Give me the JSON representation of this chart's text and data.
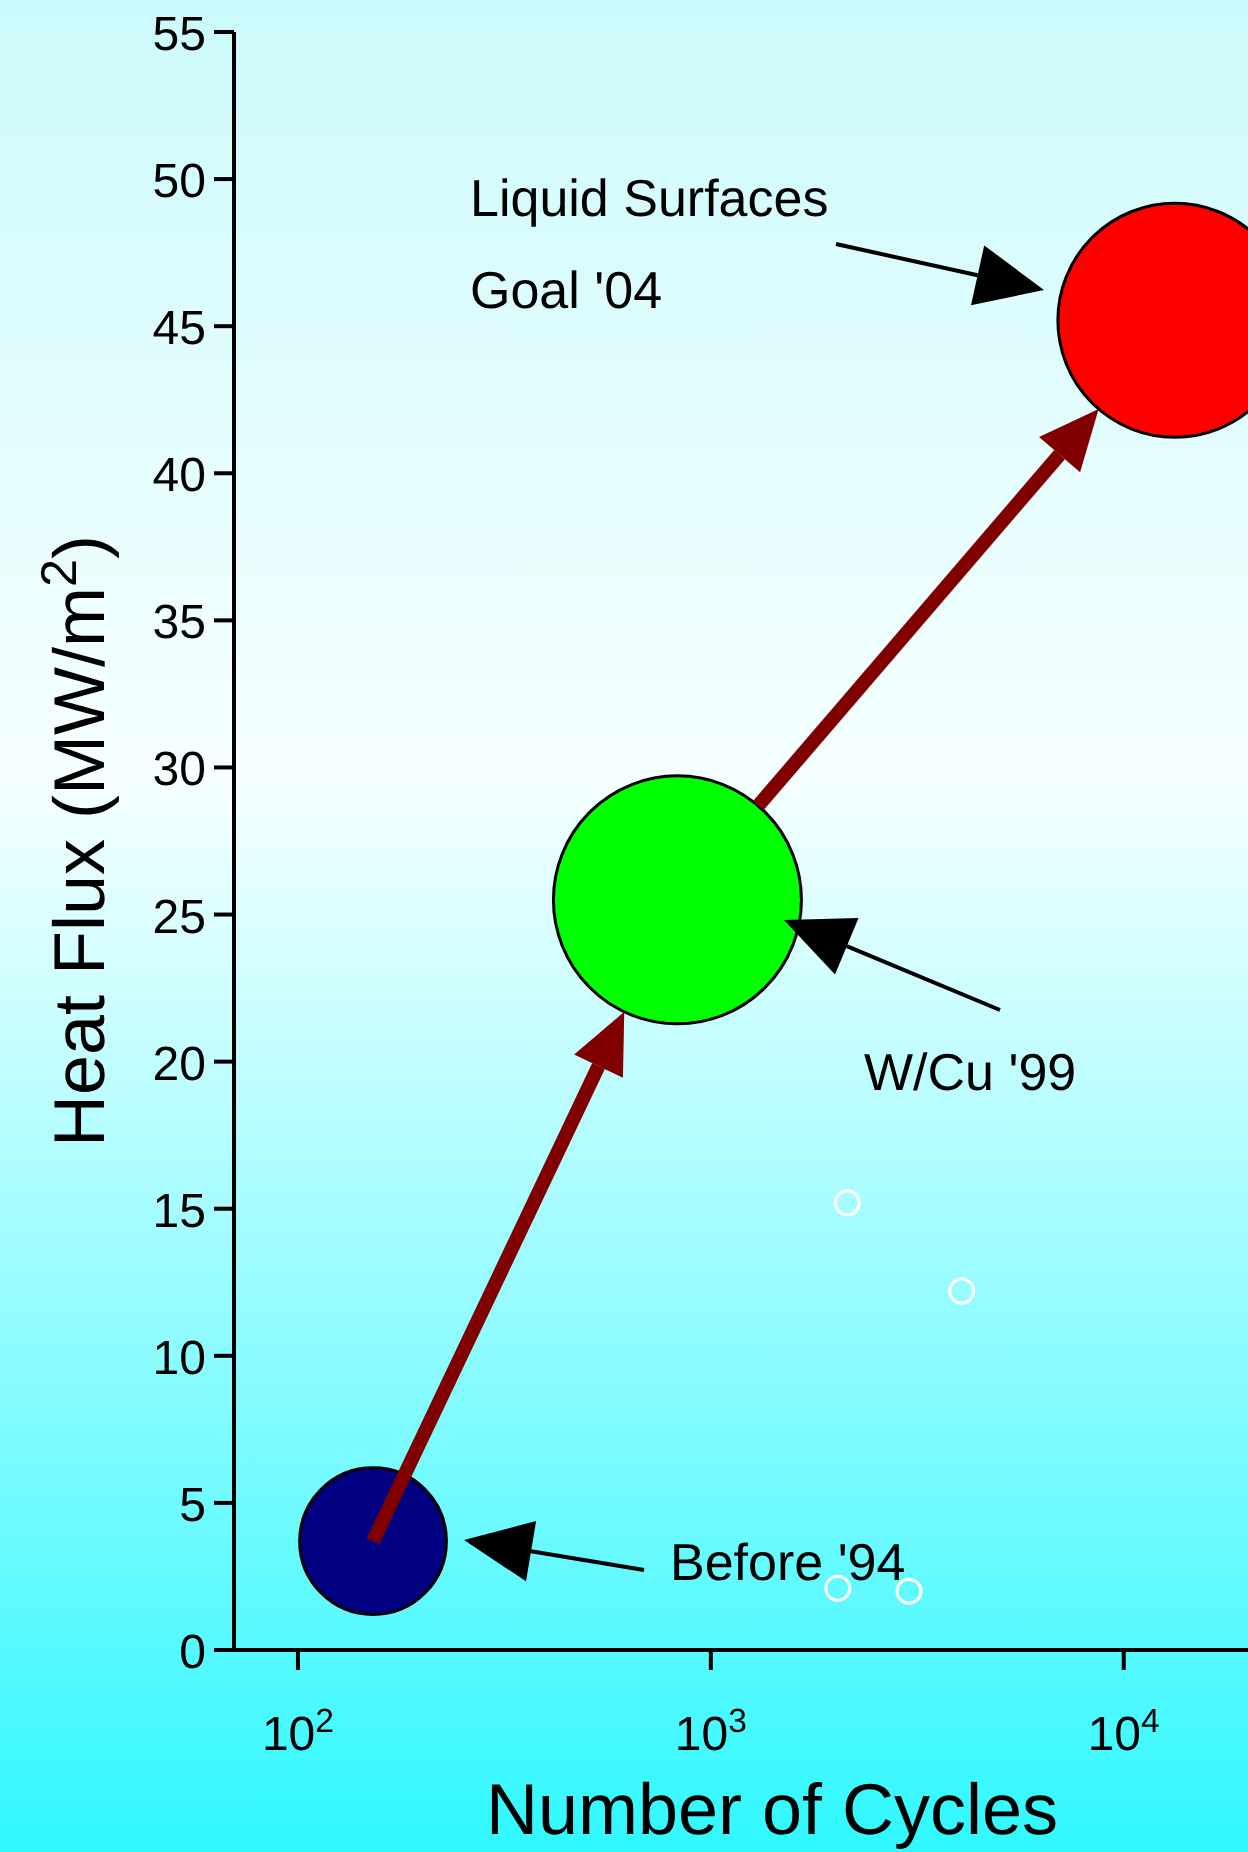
{
  "chart_data": {
    "type": "bubble",
    "xlabel": "Number of Cycles",
    "ylabel": "Heat Flux (MW/m$^{2}$)",
    "log": "x",
    "xlim": [
      70,
      20000
    ],
    "xticks": [
      {
        "value": 100,
        "label": "10$^{2}$"
      },
      {
        "value": 1000,
        "label": "10$^{3}$"
      },
      {
        "value": 10000,
        "label": "10$^{4}$"
      }
    ],
    "ylim": [
      0,
      55
    ],
    "yticks": [
      0,
      5,
      10,
      15,
      20,
      25,
      30,
      35,
      40,
      45,
      50,
      55
    ],
    "grid": false,
    "legend": false,
    "series": [
      {
        "x": [
          152,
          830,
          13300
        ],
        "values": [
          3.7,
          25.5,
          45.2
        ],
        "sizes": [
          0.35,
          1,
          0.89
        ],
        "colors": [
          "#000080",
          "#00ff00",
          "#ff0000"
        ]
      },
      {
        "type": "scatter",
        "x": [
          2030,
          2140,
          3020,
          4050
        ],
        "values": [
          2.1,
          15.2,
          2.0,
          12.2
        ],
        "color": "#ffffff",
        "marker": "circle"
      }
    ],
    "annotations": [
      "Before '94",
      "W/Cu '99",
      "Liquid Surfaces\nGoal '04"
    ]
  }
}
